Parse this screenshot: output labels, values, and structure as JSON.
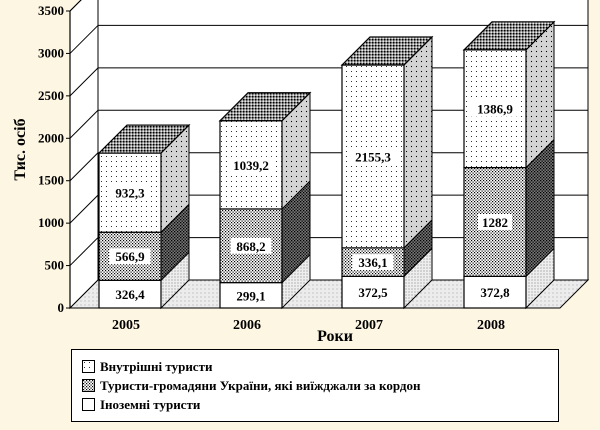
{
  "chart_data": {
    "type": "bar",
    "stacked": true,
    "three_d": true,
    "categories": [
      "2005",
      "2006",
      "2007",
      "2008"
    ],
    "series": [
      {
        "name": "Іноземні туристи",
        "values": [
          326.4,
          299.1,
          372.5,
          372.8
        ],
        "value_labels": [
          "326,4",
          "299,1",
          "372,5",
          "372,8"
        ],
        "pattern": "blank"
      },
      {
        "name": "Туристи-громадяни України, які виїжджали за кордон",
        "values": [
          566.9,
          868.2,
          336.1,
          1282
        ],
        "value_labels": [
          "566,9",
          "868,2",
          "336,1",
          "1282"
        ],
        "pattern": "dense-dots"
      },
      {
        "name": "Внутрішні туристи",
        "values": [
          932.3,
          1039.2,
          2155.3,
          1386.9
        ],
        "value_labels": [
          "932,3",
          "1039,2",
          "2155,3",
          "1386,9"
        ],
        "pattern": "sparse-dots"
      }
    ],
    "xlabel": "Роки",
    "ylabel": "Тис. осіб",
    "ylim": [
      0,
      3500
    ],
    "yticks": [
      0,
      500,
      1000,
      1500,
      2000,
      2500,
      3000,
      3500
    ],
    "legend": "bottom",
    "colors": {
      "background": "#fdf6e3",
      "plot": "#ffffff",
      "ink": "#000000"
    }
  }
}
